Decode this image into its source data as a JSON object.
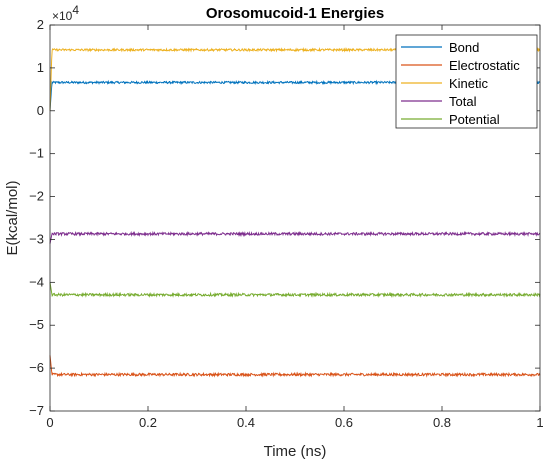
{
  "chart_data": {
    "type": "line",
    "title": "Orosomucoid-1 Energies",
    "xlabel": "Time (ns)",
    "ylabel": "E(kcal/mol)",
    "xlim": [
      0,
      1
    ],
    "ylim": [
      -70000,
      20000
    ],
    "y_exponent_base": "×10",
    "y_exponent_power": "4",
    "xticks": [
      0,
      0.2,
      0.4,
      0.6,
      0.8,
      1
    ],
    "xtick_labels": [
      "0",
      "0.2",
      "0.4",
      "0.6",
      "0.8",
      "1"
    ],
    "yticks": [
      -7,
      -6,
      -5,
      -4,
      -3,
      -2,
      -1,
      0,
      1,
      2
    ],
    "ytick_labels": [
      "−7",
      "−6",
      "−5",
      "−4",
      "−3",
      "−2",
      "−1",
      "0",
      "1",
      "2"
    ],
    "legend_position": "top-right",
    "grid": false,
    "series": [
      {
        "name": "Bond",
        "color": "#0072BD",
        "start": 0,
        "steady": 6600,
        "noise": 250
      },
      {
        "name": "Electrostatic",
        "color": "#D95319",
        "start": -57000,
        "steady": -61500,
        "noise": 300
      },
      {
        "name": "Kinetic",
        "color": "#EDB120",
        "start": 0,
        "steady": 14200,
        "noise": 250
      },
      {
        "name": "Total",
        "color": "#7E2F8E",
        "start": -31000,
        "steady": -28700,
        "noise": 300
      },
      {
        "name": "Potential",
        "color": "#77AC30",
        "start": -40000,
        "steady": -42900,
        "noise": 300
      }
    ]
  }
}
